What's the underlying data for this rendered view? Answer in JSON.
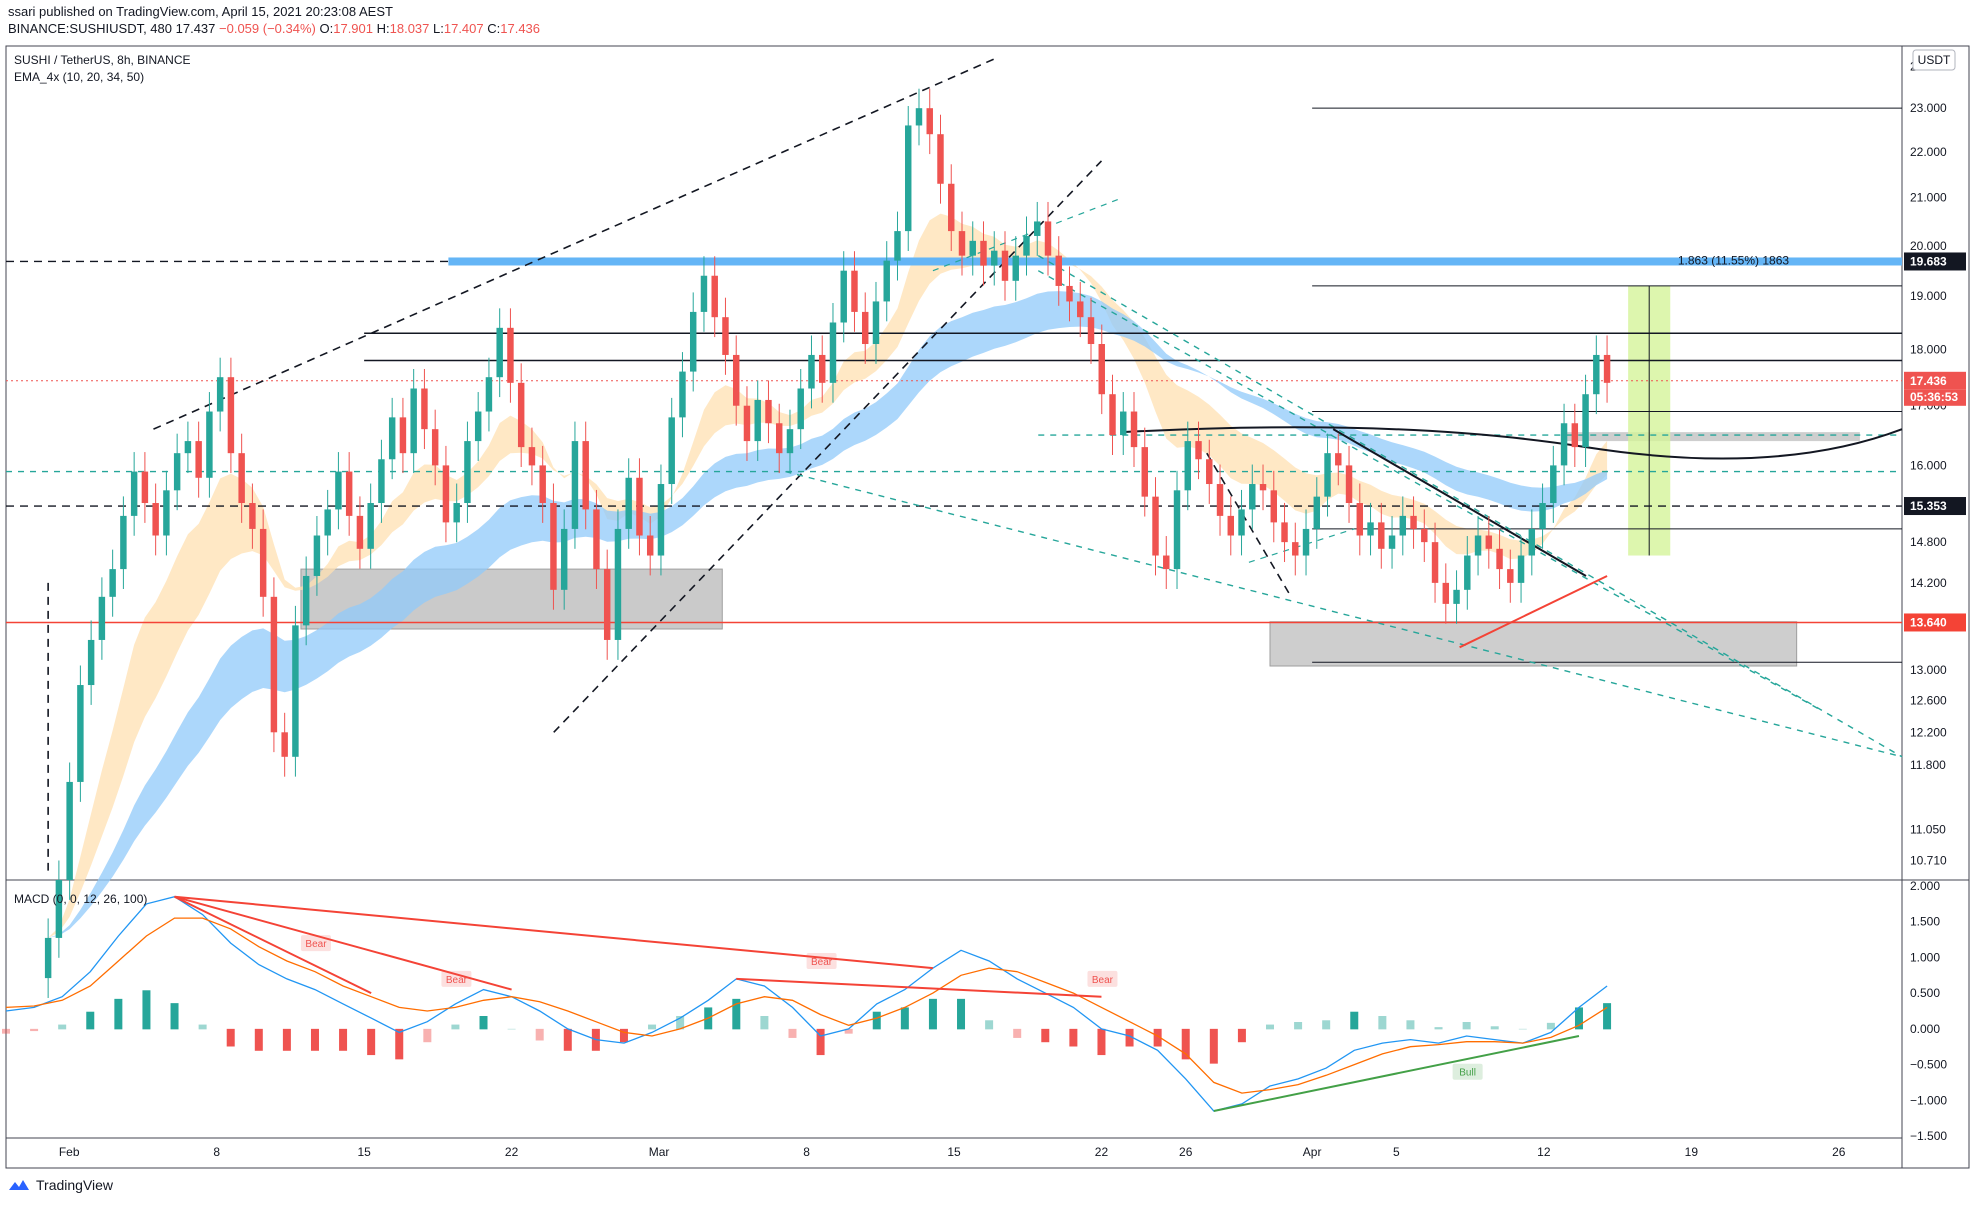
{
  "header": {
    "publisher_line": "ssari published on TradingView.com, April 15, 2021 20:23:08 AEST",
    "ticker": "BINANCE:SUSHIUSDT, 480",
    "last": "17.437",
    "change": "−0.059 (−0.34%)",
    "o_label": "O:",
    "o_val": "17.901",
    "h_label": "H:",
    "h_val": "18.037",
    "l_label": "L:",
    "l_val": "17.407",
    "c_label": "C:",
    "c_val": "17.436"
  },
  "legend": {
    "symbol": "SUSHI / TetherUS, 8h, BINANCE",
    "indicator": "EMA_4x (10, 20, 34, 50)",
    "macd": "MACD (0, 0, 12, 26, 100)"
  },
  "currency_button": "USDT",
  "footer": {
    "brand": "TradingView"
  },
  "colors": {
    "up": "#26a69a",
    "down": "#ef5350",
    "ema_fast": "#ffe0b2",
    "ema_slow": "#90caf9",
    "resistance": "#64b5f6",
    "support_red": "#f44336",
    "teal_dash": "#26a69a",
    "target_box": "#d4f49a"
  },
  "chart_data": {
    "type": "candlestick",
    "title": "SUSHI / TetherUS, 8h, BINANCE",
    "y_scale": "log",
    "ylim": [
      10.5,
      24.5
    ],
    "x_range": [
      "2021-01-29",
      "2021-04-29"
    ],
    "x_ticks": [
      "Feb",
      "8",
      "15",
      "22",
      "Mar",
      "8",
      "15",
      "22",
      "26",
      "Apr",
      "5",
      "12",
      "19",
      "26"
    ],
    "y_ticks": [
      "24.000",
      "23.000",
      "22.000",
      "21.000",
      "20.000",
      "19.000",
      "18.000",
      "17.000",
      "16.000",
      "14.800",
      "14.200",
      "13.000",
      "12.600",
      "12.200",
      "11.800",
      "11.050",
      "10.710"
    ],
    "price_labels": [
      {
        "value": 19.683,
        "label": "19.683",
        "color": "#131722"
      },
      {
        "value": 17.436,
        "label": "17.436",
        "color": "#ef5350"
      },
      {
        "value": 15.353,
        "label": "15.353",
        "color": "#131722"
      },
      {
        "value": 13.64,
        "label": "13.640",
        "color": "#f44336"
      }
    ],
    "countdown": "05:36:53",
    "horizontal_levels": [
      23.0,
      19.683,
      19.2,
      18.3,
      17.8,
      16.9,
      16.5,
      15.9,
      15.353,
      15.0,
      13.64,
      13.1
    ],
    "annotations": [
      "Bear",
      "Bear",
      "Bear",
      "Bear",
      "Bull"
    ],
    "measure_label": "1.863 (11.55%) 1863",
    "candles_approx": {
      "note": "8h candles (estimated closes)",
      "closes": [
        9.9,
        10.5,
        11.6,
        12.8,
        13.4,
        14.0,
        14.4,
        15.2,
        15.9,
        15.4,
        14.9,
        15.6,
        16.2,
        16.4,
        15.8,
        16.9,
        17.5,
        16.2,
        15.4,
        15.0,
        14.0,
        12.2,
        11.9,
        13.6,
        14.3,
        14.9,
        15.3,
        15.9,
        15.2,
        14.7,
        15.4,
        16.1,
        16.8,
        16.2,
        17.3,
        16.6,
        16.0,
        15.1,
        15.4,
        16.4,
        16.9,
        17.5,
        18.4,
        17.4,
        16.3,
        16.0,
        15.4,
        14.1,
        15.0,
        16.4,
        15.3,
        14.4,
        13.4,
        15.0,
        15.8,
        14.9,
        14.6,
        15.7,
        16.8,
        17.6,
        18.7,
        19.4,
        18.6,
        17.9,
        17.0,
        16.4,
        17.1,
        16.7,
        16.2,
        16.6,
        17.3,
        17.9,
        17.4,
        18.5,
        19.5,
        18.7,
        18.1,
        18.9,
        19.7,
        20.3,
        22.6,
        23.0,
        22.4,
        21.3,
        20.3,
        19.8,
        20.1,
        19.6,
        19.9,
        19.3,
        19.8,
        20.2,
        20.5,
        19.8,
        19.2,
        18.9,
        18.6,
        18.1,
        17.2,
        16.5,
        16.9,
        16.3,
        15.5,
        14.6,
        14.4,
        15.6,
        16.4,
        16.1,
        15.7,
        15.2,
        14.9,
        15.3,
        15.7,
        15.6,
        15.1,
        14.8,
        14.6,
        15.0,
        15.5,
        16.2,
        16.0,
        15.4,
        14.9,
        15.1,
        14.7,
        14.9,
        15.2,
        15.0,
        14.8,
        14.2,
        13.9,
        14.1,
        14.6,
        14.9,
        14.7,
        14.4,
        14.2,
        14.6,
        15.0,
        15.4,
        16.0,
        16.7,
        16.3,
        17.2,
        17.9,
        17.4
      ]
    },
    "macd": {
      "params": "0, 0, 12, 26, 100",
      "y_ticks": [
        "2.000",
        "1.500",
        "1.000",
        "0.500",
        "0.000",
        "−0.500",
        "−1.000",
        "−1.500"
      ],
      "ylim": [
        -1.5,
        2.0
      ],
      "macd_line": [
        0.25,
        0.3,
        0.45,
        0.8,
        1.3,
        1.75,
        1.85,
        1.6,
        1.2,
        0.9,
        0.7,
        0.55,
        0.35,
        0.15,
        -0.05,
        0.1,
        0.35,
        0.55,
        0.45,
        0.25,
        0.0,
        -0.15,
        -0.2,
        -0.05,
        0.15,
        0.4,
        0.7,
        0.6,
        0.3,
        -0.1,
        0.0,
        0.35,
        0.55,
        0.85,
        1.1,
        0.95,
        0.7,
        0.5,
        0.3,
        0.0,
        -0.1,
        -0.3,
        -0.7,
        -1.15,
        -1.05,
        -0.8,
        -0.7,
        -0.55,
        -0.3,
        -0.2,
        -0.15,
        -0.2,
        -0.1,
        -0.15,
        -0.2,
        -0.05,
        0.3,
        0.6
      ],
      "signal_line": [
        0.3,
        0.32,
        0.4,
        0.6,
        0.95,
        1.3,
        1.55,
        1.55,
        1.4,
        1.15,
        0.95,
        0.8,
        0.6,
        0.45,
        0.3,
        0.25,
        0.3,
        0.4,
        0.45,
        0.38,
        0.25,
        0.1,
        -0.05,
        -0.1,
        0.0,
        0.15,
        0.35,
        0.45,
        0.4,
        0.2,
        0.05,
        0.15,
        0.3,
        0.5,
        0.75,
        0.85,
        0.8,
        0.65,
        0.5,
        0.3,
        0.1,
        -0.1,
        -0.35,
        -0.75,
        -0.9,
        -0.85,
        -0.78,
        -0.65,
        -0.5,
        -0.35,
        -0.25,
        -0.22,
        -0.18,
        -0.18,
        -0.2,
        -0.12,
        0.05,
        0.3
      ]
    }
  }
}
